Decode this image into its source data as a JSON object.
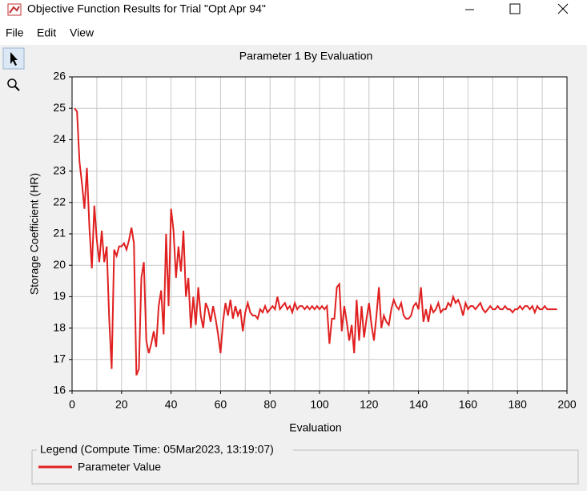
{
  "window": {
    "title": "Objective Function Results for Trial \"Opt Apr 94\"",
    "menu": [
      "File",
      "Edit",
      "View"
    ]
  },
  "chart_data": {
    "type": "line",
    "title": "Parameter 1 By Evaluation",
    "xlabel": "Evaluation",
    "ylabel": "Storage Coefficient (HR)",
    "legend_title": "Legend (Compute Time: 05Mar2023, 13:19:07)",
    "xlim": [
      0,
      200
    ],
    "xticks": [
      0,
      20,
      40,
      60,
      80,
      100,
      120,
      140,
      160,
      180,
      200
    ],
    "ylim": [
      16,
      26
    ],
    "yticks": [
      16,
      17,
      18,
      19,
      20,
      21,
      22,
      23,
      24,
      25,
      26
    ],
    "grid": true,
    "x": [
      1,
      2,
      3,
      4,
      5,
      6,
      7,
      8,
      9,
      10,
      11,
      12,
      13,
      14,
      15,
      16,
      17,
      18,
      19,
      20,
      21,
      22,
      23,
      24,
      25,
      26,
      27,
      28,
      29,
      30,
      31,
      32,
      33,
      34,
      35,
      36,
      37,
      38,
      39,
      40,
      41,
      42,
      43,
      44,
      45,
      46,
      47,
      48,
      49,
      50,
      51,
      52,
      53,
      54,
      55,
      56,
      57,
      58,
      59,
      60,
      61,
      62,
      63,
      64,
      65,
      66,
      67,
      68,
      69,
      70,
      71,
      72,
      73,
      74,
      75,
      76,
      77,
      78,
      79,
      80,
      81,
      82,
      83,
      84,
      85,
      86,
      87,
      88,
      89,
      90,
      91,
      92,
      93,
      94,
      95,
      96,
      97,
      98,
      99,
      100,
      101,
      102,
      103,
      104,
      105,
      106,
      107,
      108,
      109,
      110,
      111,
      112,
      113,
      114,
      115,
      116,
      117,
      118,
      119,
      120,
      121,
      122,
      123,
      124,
      125,
      126,
      127,
      128,
      129,
      130,
      131,
      132,
      133,
      134,
      135,
      136,
      137,
      138,
      139,
      140,
      141,
      142,
      143,
      144,
      145,
      146,
      147,
      148,
      149,
      150,
      151,
      152,
      153,
      154,
      155,
      156,
      157,
      158,
      159,
      160,
      161,
      162,
      163,
      164,
      165,
      166,
      167,
      168,
      169,
      170,
      171,
      172,
      173,
      174,
      175,
      176,
      177,
      178,
      179,
      180,
      181,
      182,
      183,
      184,
      185,
      186,
      187,
      188,
      189,
      190,
      191,
      192,
      193,
      194,
      195,
      196
    ],
    "series": [
      {
        "name": "Parameter Value",
        "color": "#e02020",
        "values": [
          25.0,
          24.9,
          23.3,
          22.6,
          21.8,
          23.1,
          21.2,
          19.9,
          21.9,
          20.8,
          20.1,
          21.1,
          20.1,
          20.6,
          18.3,
          16.7,
          20.5,
          20.3,
          20.6,
          20.6,
          20.7,
          20.5,
          20.8,
          21.2,
          20.7,
          16.5,
          16.7,
          19.6,
          20.1,
          17.6,
          17.2,
          17.5,
          17.9,
          17.4,
          18.7,
          19.2,
          17.8,
          21.0,
          18.7,
          21.8,
          21.1,
          19.6,
          20.6,
          19.8,
          21.1,
          19.0,
          19.6,
          18.0,
          19.0,
          18.1,
          19.3,
          18.4,
          18.0,
          18.8,
          18.6,
          18.2,
          18.7,
          18.3,
          17.8,
          17.2,
          18.2,
          18.8,
          18.4,
          18.9,
          18.3,
          18.7,
          18.4,
          18.6,
          17.9,
          18.5,
          18.8,
          18.5,
          18.4,
          18.4,
          18.3,
          18.6,
          18.5,
          18.7,
          18.5,
          18.6,
          18.7,
          18.6,
          19.0,
          18.6,
          18.7,
          18.8,
          18.6,
          18.7,
          18.5,
          18.8,
          18.6,
          18.7,
          18.7,
          18.6,
          18.7,
          18.6,
          18.7,
          18.6,
          18.7,
          18.6,
          18.7,
          18.6,
          18.7,
          17.5,
          18.3,
          18.3,
          19.3,
          19.4,
          17.9,
          18.7,
          18.2,
          17.6,
          18.1,
          17.2,
          18.9,
          17.6,
          18.7,
          17.7,
          18.3,
          18.8,
          18.1,
          17.6,
          18.4,
          19.3,
          18.0,
          18.4,
          18.2,
          18.1,
          18.6,
          18.9,
          18.7,
          18.6,
          18.8,
          18.4,
          18.3,
          18.3,
          18.4,
          18.7,
          18.8,
          18.6,
          19.3,
          18.2,
          18.6,
          18.2,
          18.7,
          18.5,
          18.6,
          18.8,
          18.5,
          18.6,
          18.6,
          18.8,
          18.7,
          19.0,
          18.8,
          18.9,
          18.7,
          18.4,
          18.8,
          18.6,
          18.7,
          18.7,
          18.6,
          18.7,
          18.8,
          18.6,
          18.5,
          18.6,
          18.7,
          18.6,
          18.6,
          18.7,
          18.6,
          18.6,
          18.7,
          18.6,
          18.6,
          18.5,
          18.6,
          18.6,
          18.7,
          18.6,
          18.7,
          18.7,
          18.6,
          18.7,
          18.5,
          18.7,
          18.6,
          18.6,
          18.7,
          18.6,
          18.6,
          18.6,
          18.6,
          18.6
        ]
      }
    ]
  }
}
